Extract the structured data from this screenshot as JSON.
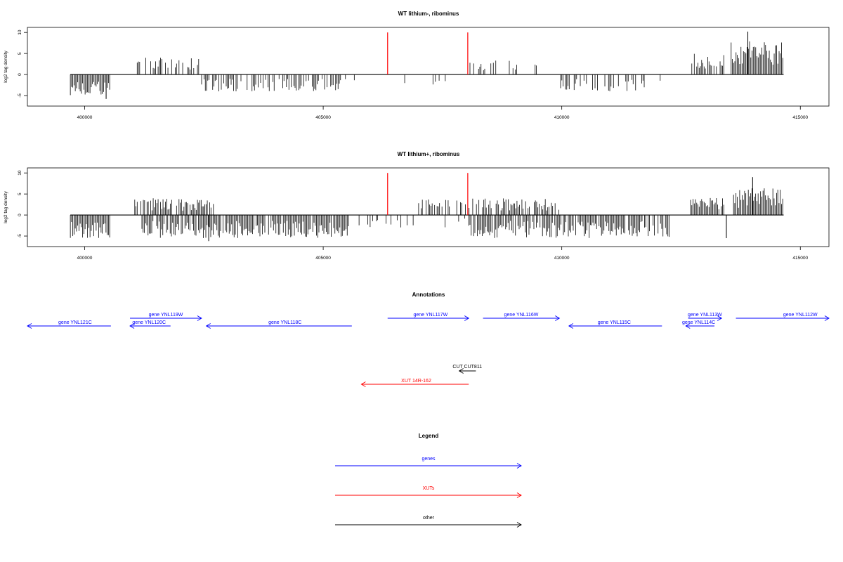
{
  "chart_data": [
    {
      "type": "bar",
      "title": "WT lithium-, ribominus",
      "ylabel": "log2 tag density",
      "xlim": [
        398800,
        415600
      ],
      "ylim": [
        -7.5,
        11.2
      ],
      "xticks": [
        400000,
        405000,
        410000,
        415000
      ],
      "yticks": [
        -5,
        0,
        5,
        10
      ],
      "ytick_labels": [
        "-5",
        "0",
        "5",
        "10"
      ],
      "grid": false,
      "markers": {
        "color": "#ff0000",
        "x": [
          406350,
          408030
        ],
        "y": [
          0,
          10
        ]
      },
      "regions": [
        {
          "start": 399700,
          "end": 400550,
          "sign": -1,
          "max": 5.5,
          "density": 1.0
        },
        {
          "start": 401050,
          "end": 402400,
          "sign": 1,
          "max": 4.0,
          "density": 0.5
        },
        {
          "start": 402400,
          "end": 405550,
          "sign": -1,
          "max": 4.0,
          "density": 0.6
        },
        {
          "start": 405600,
          "end": 408000,
          "sign": -1,
          "max": 2.5,
          "density": 0.08
        },
        {
          "start": 408050,
          "end": 409600,
          "sign": 1,
          "max": 3.5,
          "density": 0.2
        },
        {
          "start": 409950,
          "end": 412100,
          "sign": -1,
          "max": 4.0,
          "density": 0.4
        },
        {
          "start": 412700,
          "end": 413400,
          "sign": 1,
          "max": 5.0,
          "density": 0.8
        },
        {
          "start": 413550,
          "end": 414650,
          "sign": 1,
          "max": 8.0,
          "density": 1.0
        }
      ],
      "spikes": [
        {
          "x": 413900,
          "y": 10.2
        },
        {
          "x": 400450,
          "y": -5.8
        }
      ]
    },
    {
      "type": "bar",
      "title": "WT lithium+, ribominus",
      "ylabel": "log2 tag density",
      "xlim": [
        398800,
        415600
      ],
      "ylim": [
        -7.5,
        11.2
      ],
      "xticks": [
        400000,
        405000,
        410000,
        415000
      ],
      "yticks": [
        -5,
        0,
        5,
        10
      ],
      "ytick_labels": [
        "-5",
        "0",
        "5",
        "10"
      ],
      "grid": false,
      "markers": {
        "color": "#ff0000",
        "x": [
          406350,
          408030
        ],
        "y": [
          0,
          10
        ]
      },
      "regions": [
        {
          "start": 399700,
          "end": 400550,
          "sign": -1,
          "max": 5.5,
          "density": 1.0
        },
        {
          "start": 401050,
          "end": 402700,
          "sign": 1,
          "max": 4.0,
          "density": 0.8
        },
        {
          "start": 401200,
          "end": 405550,
          "sign": -1,
          "max": 5.5,
          "density": 0.9
        },
        {
          "start": 405700,
          "end": 408050,
          "sign": -1,
          "max": 3.0,
          "density": 0.15
        },
        {
          "start": 407000,
          "end": 409950,
          "sign": 1,
          "max": 4.0,
          "density": 0.6
        },
        {
          "start": 408050,
          "end": 412300,
          "sign": -1,
          "max": 5.5,
          "density": 0.8
        },
        {
          "start": 412700,
          "end": 413400,
          "sign": 1,
          "max": 4.5,
          "density": 0.9
        },
        {
          "start": 413600,
          "end": 414650,
          "sign": 1,
          "max": 6.5,
          "density": 1.0
        }
      ],
      "spikes": [
        {
          "x": 414000,
          "y": 9.0
        },
        {
          "x": 413450,
          "y": -5.5
        },
        {
          "x": 402600,
          "y": -6.2
        }
      ]
    }
  ],
  "annotations": {
    "title": "Annotations",
    "xlim": [
      398800,
      415600
    ],
    "genes": [
      {
        "label": "gene YNL121C",
        "start": 398800,
        "end": 400550,
        "dir": "left",
        "row": 2,
        "labelAt": 399800
      },
      {
        "label": "gene YNL120C",
        "start": 400950,
        "end": 401800,
        "dir": "left",
        "row": 2,
        "labelAt": 401350
      },
      {
        "label": "gene YNL119W",
        "start": 400950,
        "end": 402450,
        "dir": "right",
        "row": 1,
        "labelAt": 401700
      },
      {
        "label": "gene YNL118C",
        "start": 402550,
        "end": 405600,
        "dir": "left",
        "row": 2,
        "labelAt": 404200
      },
      {
        "label": "gene YNL117W",
        "start": 406350,
        "end": 408050,
        "dir": "right",
        "row": 1,
        "labelAt": 407250
      },
      {
        "label": "gene YNL116W",
        "start": 408350,
        "end": 409950,
        "dir": "right",
        "row": 1,
        "labelAt": 409150
      },
      {
        "label": "gene YNL115C",
        "start": 410150,
        "end": 412100,
        "dir": "left",
        "row": 2,
        "labelAt": 411100
      },
      {
        "label": "gene YNL114C",
        "start": 412600,
        "end": 413200,
        "dir": "left",
        "row": 2,
        "labelAt": 412870
      },
      {
        "label": "gene YNL113W",
        "start": 412650,
        "end": 413350,
        "dir": "right",
        "row": 1,
        "labelAt": 413000
      },
      {
        "label": "gene YNL112W",
        "start": 413650,
        "end": 415600,
        "dir": "right",
        "row": 1,
        "labelAt": 415000
      }
    ],
    "cuts": [
      {
        "label": "CUT CUT811",
        "start": 407850,
        "end": 408200,
        "dir": "left",
        "labelAt": 408050
      }
    ],
    "xuts": [
      {
        "label": "XUT 14R-162",
        "start": 405800,
        "end": 408050,
        "dir": "left",
        "labelAt": 406950
      }
    ]
  },
  "legend": {
    "title": "Legend",
    "items": [
      {
        "label": "genes",
        "color": "#0000ff"
      },
      {
        "label": "XUTs",
        "color": "#ff0000"
      },
      {
        "label": "other",
        "color": "#000000"
      }
    ]
  },
  "colors": {
    "genes": "#0000ff",
    "xuts": "#ff0000",
    "other": "#000000",
    "marker": "#ff0000"
  }
}
